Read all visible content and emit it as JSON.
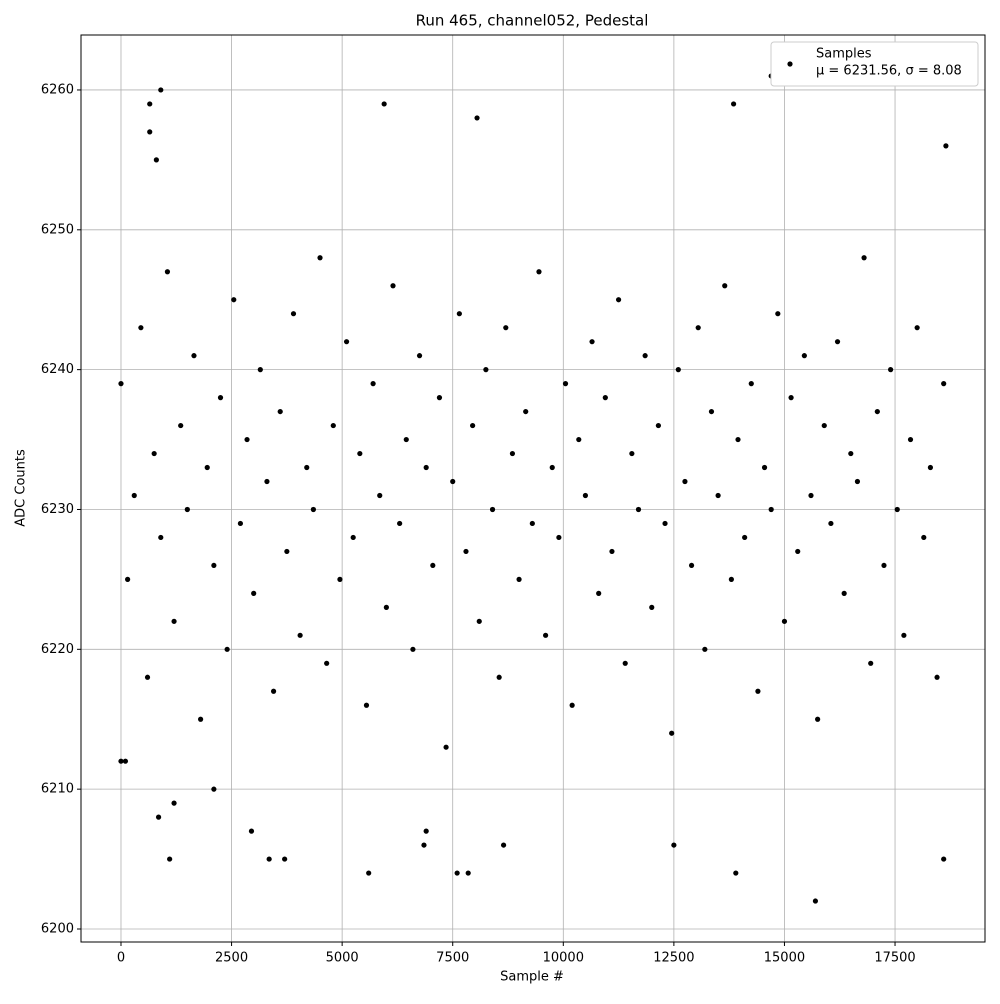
{
  "chart_data": {
    "type": "scatter",
    "title": "Run 465, channel052, Pedestal",
    "x_label": "Sample #",
    "y_label": "ADC Counts",
    "legend_note": "μ = 6231.56, σ = 8.08",
    "legend": "upper right",
    "grid": true,
    "xlim": [
      -904,
      19534
    ],
    "ylim": [
      6199.07,
      6263.93
    ],
    "xticks": [
      0,
      2500,
      5000,
      7500,
      10000,
      12500,
      15000,
      17500
    ],
    "yticks": [
      6200,
      6210,
      6220,
      6230,
      6240,
      6250,
      6260
    ],
    "series": [
      {
        "name": "Samples",
        "color": "#000000",
        "x": [
          0,
          150,
          300,
          450,
          600,
          750,
          900,
          1050,
          1200,
          1350,
          1500,
          1650,
          1800,
          1950,
          2100,
          2250,
          2400,
          2550,
          2700,
          2850,
          3000,
          3150,
          3300,
          3450,
          3600,
          3750,
          3900,
          4050,
          4200,
          4350,
          4500,
          4650,
          4800,
          4950,
          5100,
          5250,
          5400,
          5550,
          5700,
          5850,
          6000,
          6150,
          6300,
          6450,
          6600,
          6750,
          6900,
          7050,
          7200,
          7350,
          7500,
          7650,
          7800,
          7950,
          8100,
          8250,
          8400,
          8550,
          8700,
          8850,
          9000,
          9150,
          9300,
          9450,
          9600,
          9750,
          9900,
          10050,
          10200,
          10350,
          10500,
          10650,
          10800,
          10950,
          11100,
          11250,
          11400,
          11550,
          11700,
          11850,
          12000,
          12150,
          12300,
          12450,
          12600,
          12750,
          12900,
          13050,
          13200,
          13350,
          13500,
          13650,
          13800,
          13950,
          14100,
          14250,
          14400,
          14550,
          14700,
          14850,
          15000,
          15150,
          15300,
          15450,
          15600,
          15750,
          15900,
          16050,
          16200,
          16350,
          16500,
          16650,
          16800,
          16950,
          17100,
          17250,
          17400,
          17550,
          17700,
          17850,
          18000,
          18150,
          18300,
          18450,
          18600,
          0,
          100,
          650,
          650,
          900,
          800,
          1100,
          1200,
          850,
          2100,
          5600,
          5950,
          8050,
          14700,
          15700,
          13850,
          13900,
          7600,
          7850,
          18600,
          18650,
          3700,
          3350,
          8650,
          12500,
          2950,
          6850,
          6900
        ],
        "y": [
          6239,
          6225,
          6231,
          6243,
          6218,
          6234,
          6228,
          6247,
          6222,
          6236,
          6230,
          6241,
          6215,
          6233,
          6226,
          6238,
          6220,
          6245,
          6229,
          6235,
          6224,
          6240,
          6232,
          6217,
          6237,
          6227,
          6244,
          6221,
          6233,
          6230,
          6248,
          6219,
          6236,
          6225,
          6242,
          6228,
          6234,
          6216,
          6239,
          6231,
          6223,
          6246,
          6229,
          6235,
          6220,
          6241,
          6233,
          6226,
          6238,
          6213,
          6232,
          6244,
          6227,
          6236,
          6222,
          6240,
          6230,
          6218,
          6243,
          6234,
          6225,
          6237,
          6229,
          6247,
          6221,
          6233,
          6228,
          6239,
          6216,
          6235,
          6231,
          6242,
          6224,
          6238,
          6227,
          6245,
          6219,
          6234,
          6230,
          6241,
          6223,
          6236,
          6229,
          6214,
          6240,
          6232,
          6226,
          6243,
          6220,
          6237,
          6231,
          6246,
          6225,
          6235,
          6228,
          6239,
          6217,
          6233,
          6230,
          6244,
          6222,
          6238,
          6227,
          6241,
          6231,
          6215,
          6236,
          6229,
          6242,
          6224,
          6234,
          6232,
          6248,
          6219,
          6237,
          6226,
          6240,
          6230,
          6221,
          6235,
          6243,
          6228,
          6233,
          6218,
          6239,
          6212,
          6212,
          6259,
          6257,
          6260,
          6255,
          6205,
          6209,
          6208,
          6210,
          6204,
          6259,
          6258,
          6261,
          6202,
          6259,
          6204,
          6204,
          6204,
          6205,
          6256,
          6205,
          6205,
          6206,
          6206,
          6207,
          6206,
          6207
        ]
      }
    ]
  }
}
